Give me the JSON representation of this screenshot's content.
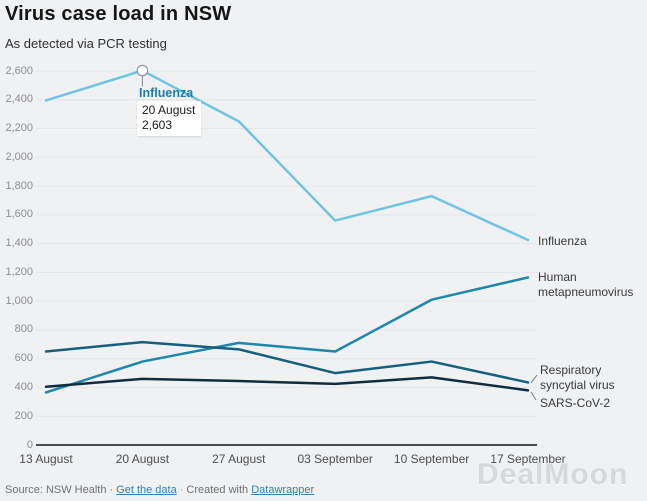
{
  "chart_data": {
    "type": "line",
    "title": "Virus case load in NSW",
    "subtitle": "As detected via PCR testing",
    "categories": [
      "13 August",
      "20 August",
      "27 August",
      "03 September",
      "10 September",
      "17 September"
    ],
    "series": [
      {
        "name": "Influenza",
        "color": "#6ec4e3",
        "values": [
          2395,
          2603,
          2250,
          1560,
          1730,
          1425
        ]
      },
      {
        "name": "Human metapneumovirus",
        "color": "#1e87ac",
        "values": [
          365,
          580,
          710,
          650,
          1010,
          1165
        ]
      },
      {
        "name": "Respiratory syncytial virus",
        "color": "#15607d",
        "values": [
          650,
          715,
          665,
          500,
          580,
          435
        ]
      },
      {
        "name": "SARS-CoV-2",
        "color": "#102d40",
        "values": [
          405,
          460,
          445,
          425,
          470,
          380
        ]
      }
    ],
    "ylim": [
      0,
      2600
    ],
    "y_tick_step": 200,
    "y_ticks": [
      "0",
      "200",
      "400",
      "600",
      "800",
      "1,000",
      "1,200",
      "1,400",
      "1,600",
      "1,800",
      "2,000",
      "2,200",
      "2,400",
      "2,600"
    ],
    "grid": "horizontal",
    "legend_position": "direct-labels-right",
    "annotation": {
      "series": "Influenza",
      "category": "20 August",
      "value": 2603,
      "label_lines": [
        "Influenza",
        "20 August",
        "2,603"
      ]
    }
  },
  "footer": {
    "source": "Source: NSW Health",
    "sep": "·",
    "get_data_label": "Get the data",
    "created_with": "Created with",
    "tool_label": "Datawrapper"
  },
  "watermark": "DealMoon",
  "colors": {
    "background": "#f0f1f3",
    "grid": "#e3e5e8",
    "axis": "#141414",
    "tick_text": "#8d8d8d",
    "link": "#3181af",
    "annotation_marker": "#8a8a8a"
  }
}
